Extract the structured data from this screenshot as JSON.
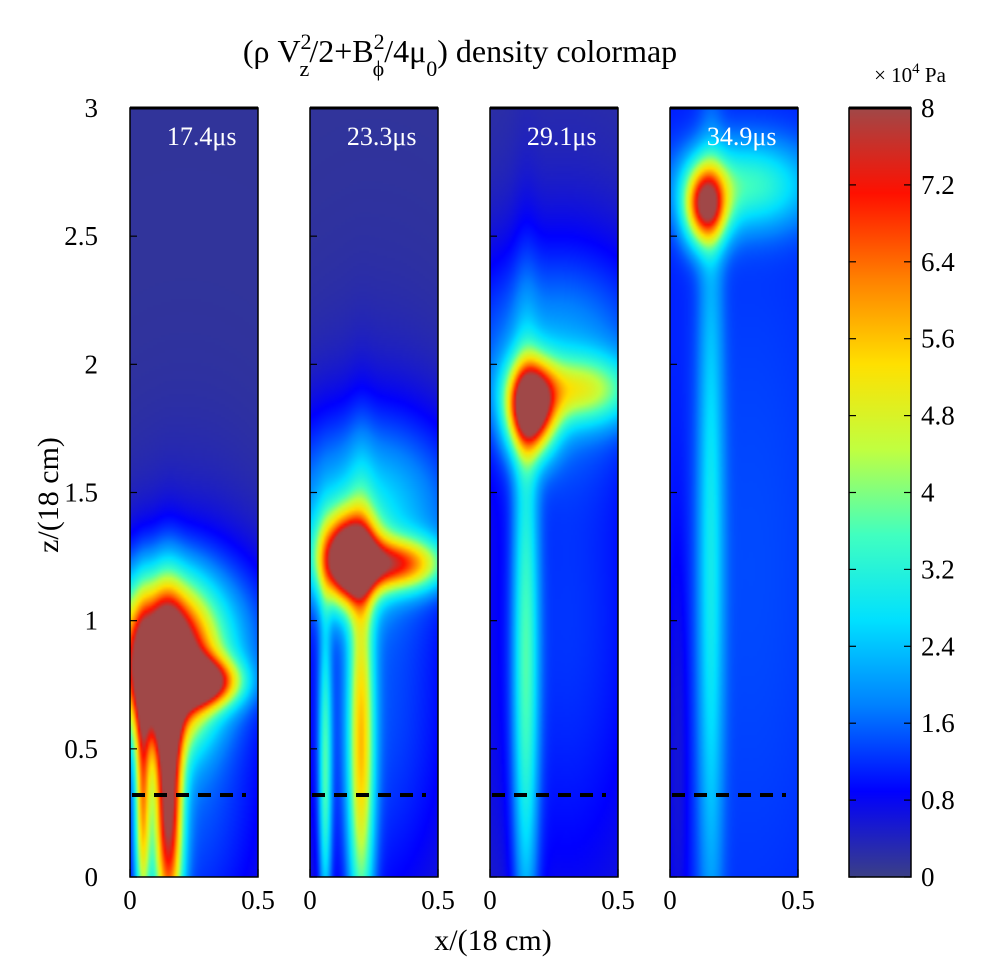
{
  "chart_data": {
    "type": "heatmap",
    "title": {
      "prefix": "(ρ V",
      "sup1": "2",
      "sub1": "z",
      "mid": "/2+B",
      "sup2": "2",
      "sub2": "ϕ",
      "mid2": "/4μ",
      "sub3": "0",
      "suffix": ") density colormap"
    },
    "xlabel": "x/(18 cm)",
    "ylabel": "z/(18 cm)",
    "xlim": [
      0,
      0.5
    ],
    "ylim": [
      0,
      3
    ],
    "x_ticks": [
      {
        "value": 0,
        "label": "0"
      },
      {
        "value": 0.5,
        "label": "0.5"
      }
    ],
    "y_ticks": [
      {
        "value": 0,
        "label": "0"
      },
      {
        "value": 0.5,
        "label": "0.5"
      },
      {
        "value": 1,
        "label": "1"
      },
      {
        "value": 1.5,
        "label": "1.5"
      },
      {
        "value": 2,
        "label": "2"
      },
      {
        "value": 2.5,
        "label": "2.5"
      },
      {
        "value": 3,
        "label": "3"
      }
    ],
    "dashed_line_z": 0.32,
    "colorbar": {
      "units_prefix": "× 10",
      "units_exp": "4",
      "units_suffix": " Pa",
      "range": [
        0,
        8
      ],
      "ticks": [
        {
          "value": 0,
          "label": "0"
        },
        {
          "value": 0.8,
          "label": "0.8"
        },
        {
          "value": 1.6,
          "label": "1.6"
        },
        {
          "value": 2.4,
          "label": "2.4"
        },
        {
          "value": 3.2,
          "label": "3.2"
        },
        {
          "value": 4,
          "label": "4"
        },
        {
          "value": 4.8,
          "label": "4.8"
        },
        {
          "value": 5.6,
          "label": "5.6"
        },
        {
          "value": 6.4,
          "label": "6.4"
        },
        {
          "value": 7.2,
          "label": "7.2"
        },
        {
          "value": 8,
          "label": "8"
        }
      ],
      "colormap": [
        "#3b3f86",
        "#0000ff",
        "#0080ff",
        "#00e0ff",
        "#40ffc0",
        "#c0ff40",
        "#ffe000",
        "#ff8000",
        "#ff1000",
        "#a04848"
      ]
    },
    "panels": [
      {
        "time_label": "17.4μs",
        "background": 0.15,
        "peak": {
          "x": 0.12,
          "z": 0.84,
          "value": 8.0
        },
        "field": [
          {
            "x": 0.13,
            "z": 0.82,
            "rx": 0.17,
            "rz": 0.28,
            "v": 8.5
          },
          {
            "x": 0.28,
            "z": 0.76,
            "rx": 0.14,
            "rz": 0.09,
            "v": 6.0
          },
          {
            "x": 0.15,
            "z": 0.3,
            "rx": 0.055,
            "rz": 0.55,
            "v": 7.0
          },
          {
            "x": 0.05,
            "z": 0.3,
            "rx": 0.03,
            "rz": 0.5,
            "v": 4.5
          },
          {
            "x": 0.22,
            "z": 0.4,
            "rx": 0.35,
            "rz": 0.85,
            "v": 1.4
          },
          {
            "x": 0.18,
            "z": 0.95,
            "rx": 0.33,
            "rz": 0.3,
            "v": 2.2
          }
        ]
      },
      {
        "time_label": "23.3μs",
        "background": 0.15,
        "peak": {
          "x": 0.14,
          "z": 1.23,
          "value": 7.5
        },
        "field": [
          {
            "x": 0.15,
            "z": 1.24,
            "rx": 0.11,
            "rz": 0.17,
            "v": 8.0
          },
          {
            "x": 0.34,
            "z": 1.22,
            "rx": 0.18,
            "rz": 0.1,
            "v": 5.0
          },
          {
            "x": 0.2,
            "z": 0.5,
            "rx": 0.05,
            "rz": 0.75,
            "v": 4.3
          },
          {
            "x": 0.06,
            "z": 0.4,
            "rx": 0.025,
            "rz": 0.6,
            "v": 2.6
          },
          {
            "x": 0.25,
            "z": 0.7,
            "rx": 0.36,
            "rz": 1.0,
            "v": 1.3
          },
          {
            "x": 0.22,
            "z": 1.45,
            "rx": 0.38,
            "rz": 0.35,
            "v": 1.8
          }
        ]
      },
      {
        "time_label": "29.1μs",
        "background": 0.15,
        "peak": {
          "x": 0.16,
          "z": 1.84,
          "value": 7.0
        },
        "field": [
          {
            "x": 0.16,
            "z": 1.83,
            "rx": 0.09,
            "rz": 0.17,
            "v": 7.4
          },
          {
            "x": 0.35,
            "z": 1.9,
            "rx": 0.22,
            "rz": 0.13,
            "v": 3.0
          },
          {
            "x": 0.14,
            "z": 0.8,
            "rx": 0.05,
            "rz": 1.1,
            "v": 2.6
          },
          {
            "x": 0.3,
            "z": 1.0,
            "rx": 0.4,
            "rz": 1.4,
            "v": 1.1
          },
          {
            "x": 0.25,
            "z": 2.05,
            "rx": 0.42,
            "rz": 0.4,
            "v": 1.4
          }
        ]
      },
      {
        "time_label": "34.9μs",
        "background": 1.0,
        "peak": {
          "x": 0.14,
          "z": 2.6,
          "value": 6.0
        },
        "field": [
          {
            "x": 0.14,
            "z": 2.62,
            "rx": 0.08,
            "rz": 0.15,
            "v": 6.0
          },
          {
            "x": 0.3,
            "z": 2.7,
            "rx": 0.25,
            "rz": 0.17,
            "v": 2.3
          },
          {
            "x": 0.16,
            "z": 1.2,
            "rx": 0.05,
            "rz": 1.5,
            "v": 1.6
          },
          {
            "x": 0.32,
            "z": 1.2,
            "rx": 0.4,
            "rz": 1.8,
            "v": 0.4
          },
          {
            "x": 0.03,
            "z": 0.5,
            "rx": 0.05,
            "rz": 1.0,
            "v": -0.6
          }
        ]
      }
    ]
  }
}
